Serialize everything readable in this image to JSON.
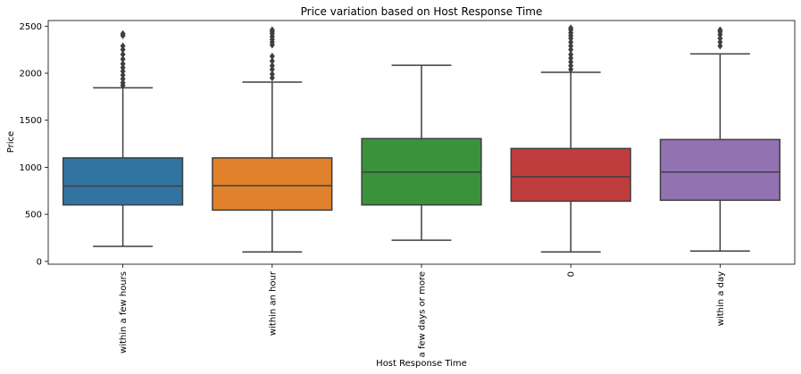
{
  "chart_data": {
    "type": "box",
    "title": "Price variation based on Host Response Time",
    "xlabel": "Host Response Time",
    "ylabel": "Price",
    "ylim": [
      -30,
      2560
    ],
    "yticks": [
      0,
      500,
      1000,
      1500,
      2000,
      2500
    ],
    "grid": false,
    "categories": [
      "within a few hours",
      "within an hour",
      "a few days or more",
      "0",
      "within a day"
    ],
    "colors": [
      "#3274a1",
      "#e1812c",
      "#3a923a",
      "#c03d3e",
      "#9372b2"
    ],
    "boxes": [
      {
        "whisker_low": 160,
        "q1": 600,
        "median": 800,
        "q3": 1100,
        "whisker_high": 1845,
        "outliers": [
          1870,
          1900,
          1940,
          1980,
          2020,
          2060,
          2100,
          2150,
          2200,
          2250,
          2290,
          2400,
          2420
        ]
      },
      {
        "whisker_low": 100,
        "q1": 545,
        "median": 805,
        "q3": 1100,
        "whisker_high": 1905,
        "outliers": [
          1950,
          1990,
          2040,
          2080,
          2130,
          2180,
          2300,
          2330,
          2360,
          2390,
          2420,
          2440,
          2460
        ]
      },
      {
        "whisker_low": 225,
        "q1": 600,
        "median": 950,
        "q3": 1305,
        "whisker_high": 2085,
        "outliers": []
      },
      {
        "whisker_low": 100,
        "q1": 640,
        "median": 900,
        "q3": 1200,
        "whisker_high": 2010,
        "outliers": [
          2040,
          2080,
          2120,
          2160,
          2200,
          2250,
          2290,
          2330,
          2370,
          2400,
          2430,
          2460,
          2480
        ]
      },
      {
        "whisker_low": 110,
        "q1": 650,
        "median": 950,
        "q3": 1295,
        "whisker_high": 2205,
        "outliers": [
          2290,
          2330,
          2370,
          2410,
          2440,
          2460
        ]
      }
    ]
  }
}
